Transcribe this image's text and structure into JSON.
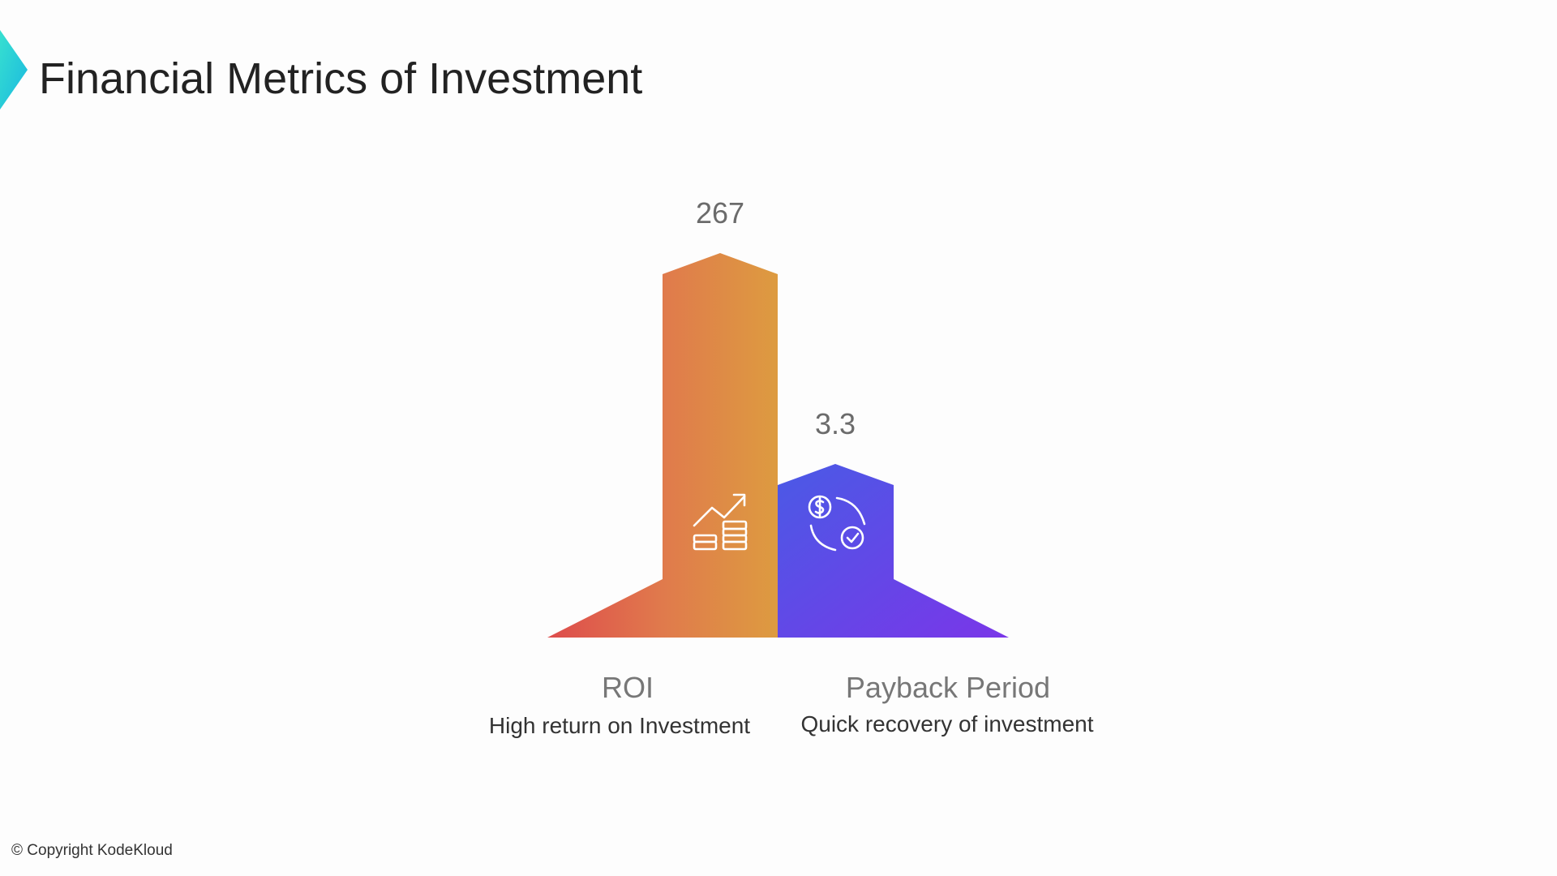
{
  "header": {
    "title": "Financial Metrics of Investment"
  },
  "items": [
    {
      "value": 267,
      "name": "ROI",
      "description": "High return on Investment"
    },
    {
      "value": 3.3,
      "name": "Payback Period",
      "description": "Quick recovery of investment"
    }
  ],
  "footer": {
    "copyright": "© Copyright KodeKloud"
  }
}
